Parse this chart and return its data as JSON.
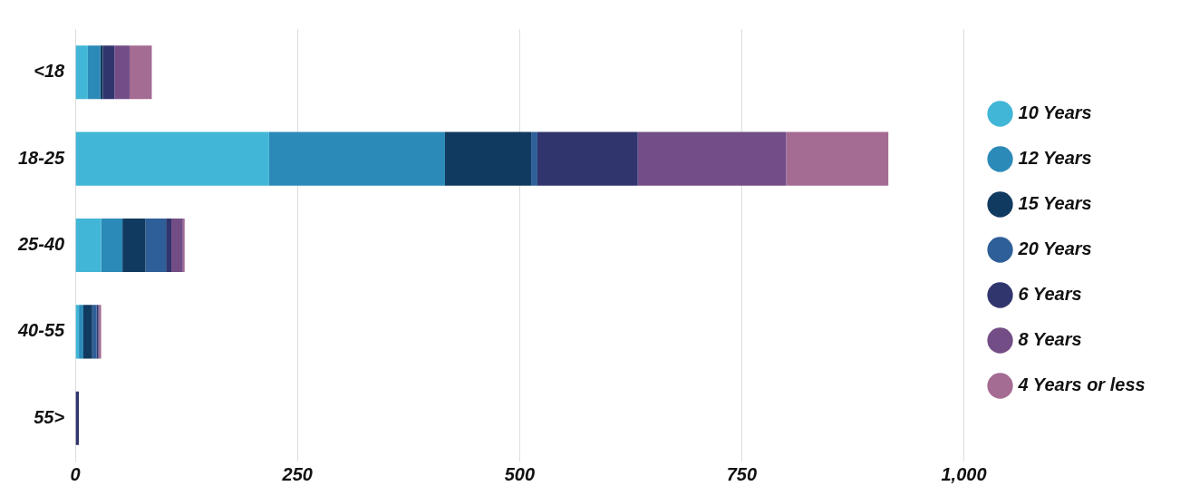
{
  "chart_data": {
    "type": "bar",
    "orientation": "horizontal",
    "stacked": true,
    "categories": [
      "<18",
      "18-25",
      "25-40",
      "40-55",
      "55>"
    ],
    "series": [
      {
        "name": "10 Years",
        "color": "#41b6d6",
        "values": [
          14,
          218,
          29,
          4,
          0
        ]
      },
      {
        "name": "12 Years",
        "color": "#2c8ab8",
        "values": [
          14,
          198,
          24,
          5,
          0
        ]
      },
      {
        "name": "15 Years",
        "color": "#113a60",
        "values": [
          3,
          97,
          26,
          10,
          0
        ]
      },
      {
        "name": "20 Years",
        "color": "#2e5f98",
        "values": [
          0,
          7,
          23,
          5,
          0
        ]
      },
      {
        "name": "6 Years",
        "color": "#31356e",
        "values": [
          13,
          113,
          6,
          2,
          4
        ]
      },
      {
        "name": "8 Years",
        "color": "#734d86",
        "values": [
          17,
          167,
          13,
          1,
          0
        ]
      },
      {
        "name": "4 Years or less",
        "color": "#a46b93",
        "values": [
          25,
          115,
          2,
          2,
          0
        ]
      }
    ],
    "xlim": [
      0,
      1000
    ],
    "xticks": [
      0,
      250,
      500,
      750,
      {
        "value": 1000,
        "label": "1,000"
      }
    ],
    "grid": "x",
    "legend": "right"
  }
}
